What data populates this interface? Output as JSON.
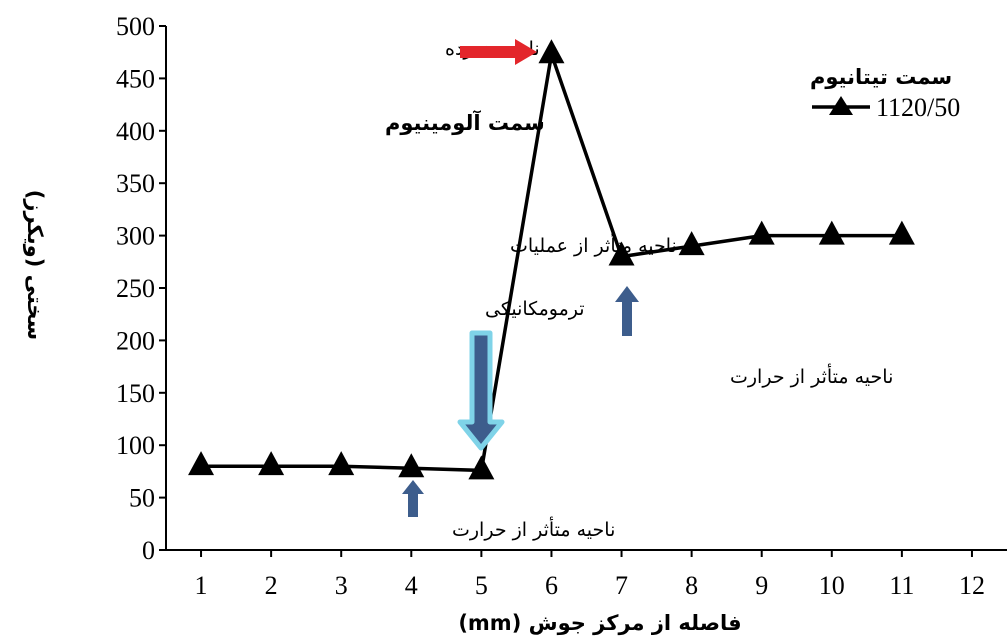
{
  "chart_data": {
    "type": "line",
    "title": "",
    "xlabel": "فاصله از مرکز جوش (mm)",
    "ylabel": "سختی (ویکرز)",
    "xlim": [
      0.5,
      12.5
    ],
    "ylim": [
      0,
      500
    ],
    "x_ticks": [
      "1",
      "2",
      "3",
      "4",
      "5",
      "6",
      "7",
      "8",
      "9",
      "10",
      "11",
      "12"
    ],
    "y_ticks": [
      "0",
      "50",
      "100",
      "150",
      "200",
      "250",
      "300",
      "350",
      "400",
      "450",
      "500"
    ],
    "grid": false,
    "legend_position": "top-right",
    "series": [
      {
        "name": "1120/50",
        "color": "#000000",
        "marker": "triangle",
        "x": [
          1,
          2,
          3,
          4,
          5,
          6,
          7,
          8,
          9,
          10,
          11
        ],
        "y": [
          80,
          80,
          80,
          78,
          76,
          473,
          280,
          290,
          300,
          300,
          300
        ]
      }
    ],
    "annotations": {
      "stir_zone": "ناحیه همزده",
      "aluminum_side": "سمت آلومینیوم",
      "titanium_side": "سمت تیتانیوم",
      "tmaz_line1": "ناحیه متأثر از عملیات",
      "tmaz_line2": "ترمومکانیکی",
      "haz_titanium": "ناحیه متأثر از حرارت",
      "haz_aluminum": "ناحیه متأثر از حرارت"
    },
    "colors": {
      "stir_arrow": "#e3262b",
      "blue_arrow": "#3d5d8c",
      "tmaz_arrow_outline": "#7fd3e8"
    }
  }
}
